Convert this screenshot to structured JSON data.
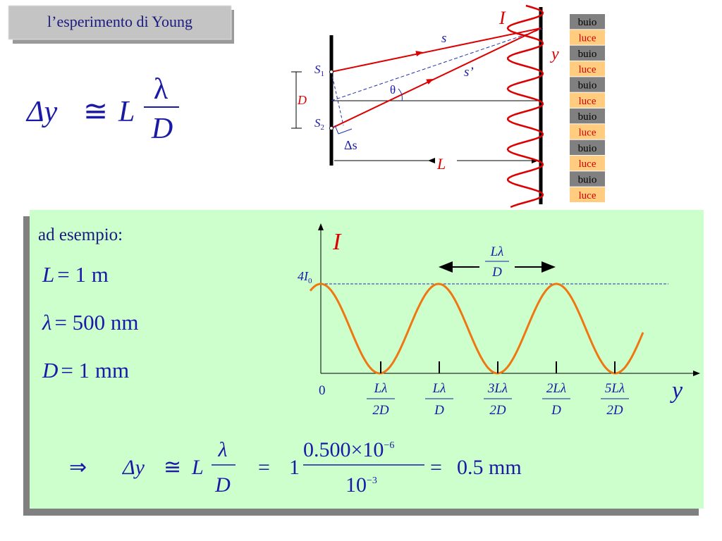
{
  "title": "l’esperimento di Young",
  "formula": {
    "lhs": "Δy",
    "approx": "≅",
    "factor": "L",
    "numerator": "λ",
    "denominator": "D"
  },
  "diagram": {
    "intensity": "I",
    "axis": "y",
    "ray1": "s",
    "ray2": "s’",
    "angle": "θ",
    "slit_distance": "D",
    "path_difference": "Δs",
    "screen_distance": "L",
    "slit1": [
      "S",
      "1"
    ],
    "slit2": [
      "S",
      "2"
    ],
    "bands": [
      "buio",
      "luce",
      "buio",
      "luce",
      "buio",
      "luce",
      "buio",
      "luce",
      "buio",
      "luce",
      "buio",
      "luce"
    ]
  },
  "example": {
    "heading": "ad esempio:",
    "lines": [
      [
        "L",
        "= 1 m"
      ],
      [
        "λ",
        "= 500 nm"
      ],
      [
        "D",
        "= 1 mm"
      ]
    ]
  },
  "graph": {
    "y_label": "I",
    "x_label": "y",
    "max_label": [
      "4I",
      "0"
    ],
    "spacing": [
      "Lλ",
      "D"
    ],
    "origin": "0",
    "ticks": [
      [
        "Lλ",
        "2D"
      ],
      [
        "Lλ",
        "D"
      ],
      [
        "3Lλ",
        "2D"
      ],
      [
        "2Lλ",
        "D"
      ],
      [
        "5Lλ",
        "2D"
      ]
    ]
  },
  "result": {
    "implies": "⇒",
    "lhs": "Δy",
    "approx": "≅",
    "factor": "L",
    "numerator": "λ",
    "denominator": "D",
    "eq1": "=",
    "coefficient": "1",
    "num": "0.500×10",
    "num_exp": "−6",
    "den": "10",
    "den_exp": "−3",
    "eq2": "=",
    "value": "0.5 mm"
  }
}
